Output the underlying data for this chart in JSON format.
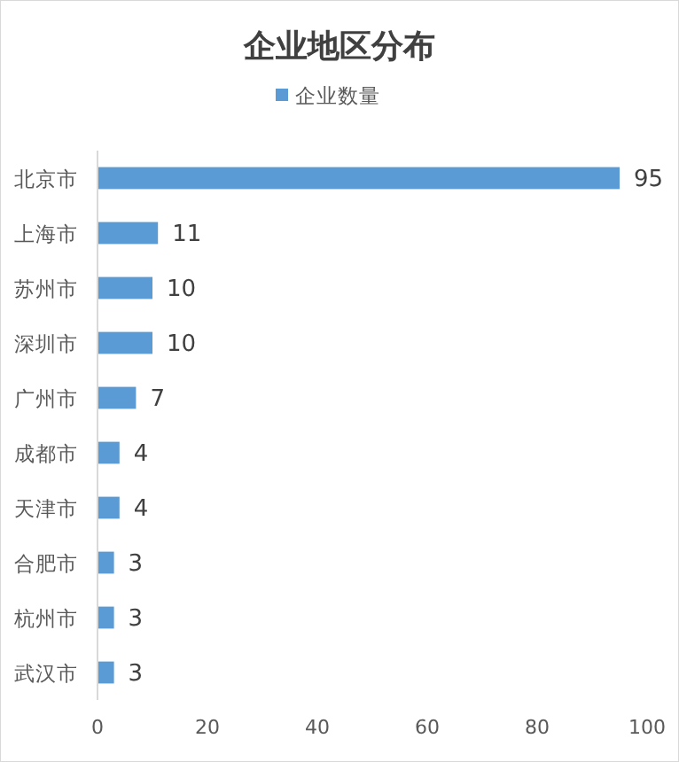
{
  "chart_data": {
    "type": "bar",
    "orientation": "horizontal",
    "title": "企业地区分布",
    "categories": [
      "北京市",
      "上海市",
      "苏州市",
      "深圳市",
      "广州市",
      "成都市",
      "天津市",
      "合肥市",
      "杭州市",
      "武汉市"
    ],
    "series": [
      {
        "name": "企业数量",
        "color": "#5b9bd5",
        "values": [
          95,
          11,
          10,
          10,
          7,
          4,
          4,
          3,
          3,
          3
        ]
      }
    ],
    "xlim": [
      0,
      100
    ],
    "xticks": [
      0,
      20,
      40,
      60,
      80,
      100
    ],
    "data_labels": true,
    "legend": "top"
  }
}
